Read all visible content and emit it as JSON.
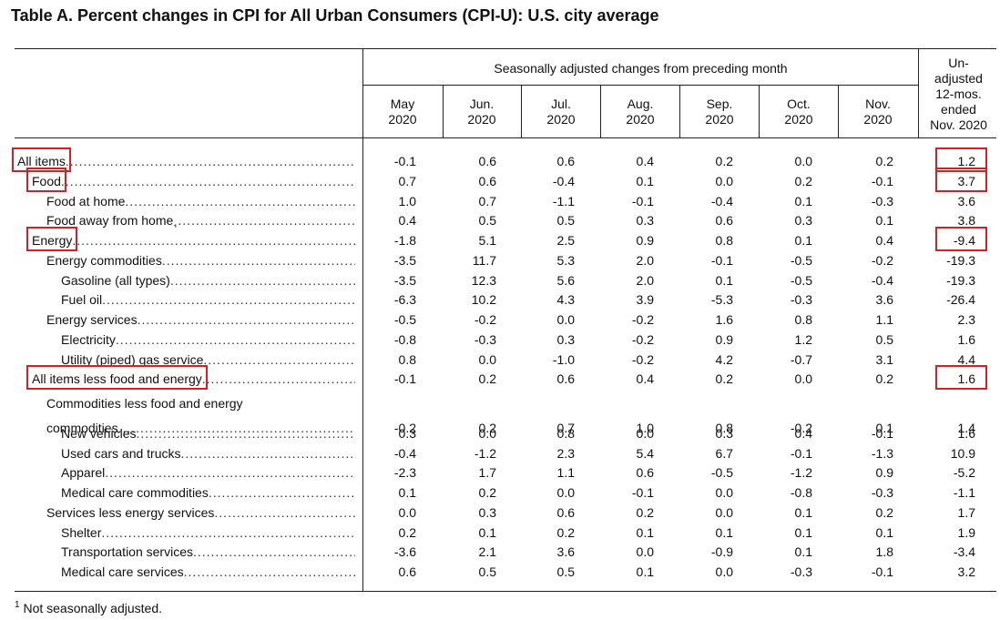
{
  "title": "Table A. Percent changes in CPI for All Urban Consumers (CPI-U): U.S. city average",
  "header": {
    "seasonal_span": "Seasonally adjusted changes from preceding month",
    "months": [
      {
        "month": "May",
        "year": "2020"
      },
      {
        "month": "Jun.",
        "year": "2020"
      },
      {
        "month": "Jul.",
        "year": "2020"
      },
      {
        "month": "Aug.",
        "year": "2020"
      },
      {
        "month": "Sep.",
        "year": "2020"
      },
      {
        "month": "Oct.",
        "year": "2020"
      },
      {
        "month": "Nov.",
        "year": "2020"
      }
    ],
    "unadjusted": [
      "Un-",
      "adjusted",
      "12-mos.",
      "ended",
      "Nov. 2020"
    ]
  },
  "rows": [
    {
      "label": "All items",
      "indent": 0,
      "values": [
        "-0.1",
        "0.6",
        "0.6",
        "0.4",
        "0.2",
        "0.0",
        "0.2"
      ],
      "unadjusted": "1.2",
      "highlight": true
    },
    {
      "label": "Food",
      "indent": 1,
      "values": [
        "0.7",
        "0.6",
        "-0.4",
        "0.1",
        "0.0",
        "0.2",
        "-0.1"
      ],
      "unadjusted": "3.7",
      "highlight": true
    },
    {
      "label": "Food at home",
      "indent": 2,
      "values": [
        "1.0",
        "0.7",
        "-1.1",
        "-0.1",
        "-0.4",
        "0.1",
        "-0.3"
      ],
      "unadjusted": "3.6"
    },
    {
      "label": "Food away from home",
      "footnote_mark": "1",
      "indent": 2,
      "values": [
        "0.4",
        "0.5",
        "0.5",
        "0.3",
        "0.6",
        "0.3",
        "0.1"
      ],
      "unadjusted": "3.8"
    },
    {
      "label": "Energy",
      "indent": 1,
      "values": [
        "-1.8",
        "5.1",
        "2.5",
        "0.9",
        "0.8",
        "0.1",
        "0.4"
      ],
      "unadjusted": "-9.4",
      "highlight": true
    },
    {
      "label": "Energy commodities",
      "indent": 2,
      "values": [
        "-3.5",
        "11.7",
        "5.3",
        "2.0",
        "-0.1",
        "-0.5",
        "-0.2"
      ],
      "unadjusted": "-19.3"
    },
    {
      "label": "Gasoline (all types)",
      "indent": 3,
      "values": [
        "-3.5",
        "12.3",
        "5.6",
        "2.0",
        "0.1",
        "-0.5",
        "-0.4"
      ],
      "unadjusted": "-19.3"
    },
    {
      "label": "Fuel oil",
      "indent": 3,
      "values": [
        "-6.3",
        "10.2",
        "4.3",
        "3.9",
        "-5.3",
        "-0.3",
        "3.6"
      ],
      "unadjusted": "-26.4"
    },
    {
      "label": "Energy services",
      "indent": 2,
      "values": [
        "-0.5",
        "-0.2",
        "0.0",
        "-0.2",
        "1.6",
        "0.8",
        "1.1"
      ],
      "unadjusted": "2.3"
    },
    {
      "label": "Electricity",
      "indent": 3,
      "values": [
        "-0.8",
        "-0.3",
        "0.3",
        "-0.2",
        "0.9",
        "1.2",
        "0.5"
      ],
      "unadjusted": "1.6"
    },
    {
      "label": "Utility (piped) gas service",
      "indent": 3,
      "values": [
        "0.8",
        "0.0",
        "-1.0",
        "-0.2",
        "4.2",
        "-0.7",
        "3.1"
      ],
      "unadjusted": "4.4"
    },
    {
      "label": "All items less food and energy",
      "indent": 1,
      "values": [
        "-0.1",
        "0.2",
        "0.6",
        "0.4",
        "0.2",
        "0.0",
        "0.2"
      ],
      "unadjusted": "1.6",
      "highlight": true
    },
    {
      "label": "commodities",
      "continuation_of": "Commodities less food and energy",
      "indent": 2,
      "values": [
        "-0.2",
        "0.2",
        "0.7",
        "1.0",
        "0.8",
        "-0.2",
        "0.1"
      ],
      "unadjusted": "1.4"
    },
    {
      "label": "New vehicles",
      "indent": 3,
      "values": [
        "0.3",
        "0.0",
        "0.8",
        "0.0",
        "0.3",
        "0.4",
        "-0.1"
      ],
      "unadjusted": "1.6"
    },
    {
      "label": "Used cars and trucks",
      "indent": 3,
      "values": [
        "-0.4",
        "-1.2",
        "2.3",
        "5.4",
        "6.7",
        "-0.1",
        "-1.3"
      ],
      "unadjusted": "10.9"
    },
    {
      "label": "Apparel",
      "indent": 3,
      "values": [
        "-2.3",
        "1.7",
        "1.1",
        "0.6",
        "-0.5",
        "-1.2",
        "0.9"
      ],
      "unadjusted": "-5.2"
    },
    {
      "label": "Medical care commodities",
      "indent": 3,
      "values": [
        "0.1",
        "0.2",
        "0.0",
        "-0.1",
        "0.0",
        "-0.8",
        "-0.3"
      ],
      "unadjusted": "-1.1"
    },
    {
      "label": "Services less energy services",
      "indent": 2,
      "values": [
        "0.0",
        "0.3",
        "0.6",
        "0.2",
        "0.0",
        "0.1",
        "0.2"
      ],
      "unadjusted": "1.7"
    },
    {
      "label": "Shelter",
      "indent": 3,
      "values": [
        "0.2",
        "0.1",
        "0.2",
        "0.1",
        "0.1",
        "0.1",
        "0.1"
      ],
      "unadjusted": "1.9"
    },
    {
      "label": "Transportation services",
      "indent": 3,
      "values": [
        "-3.6",
        "2.1",
        "3.6",
        "0.0",
        "-0.9",
        "0.1",
        "1.8"
      ],
      "unadjusted": "-3.4"
    },
    {
      "label": "Medical care services",
      "indent": 3,
      "values": [
        "0.6",
        "0.5",
        "0.5",
        "0.1",
        "0.0",
        "-0.3",
        "-0.1"
      ],
      "unadjusted": "3.2"
    }
  ],
  "footnote": {
    "mark": "1",
    "text": "Not seasonally adjusted."
  },
  "colors": {
    "highlight": "#d62027",
    "rule": "#222222"
  }
}
